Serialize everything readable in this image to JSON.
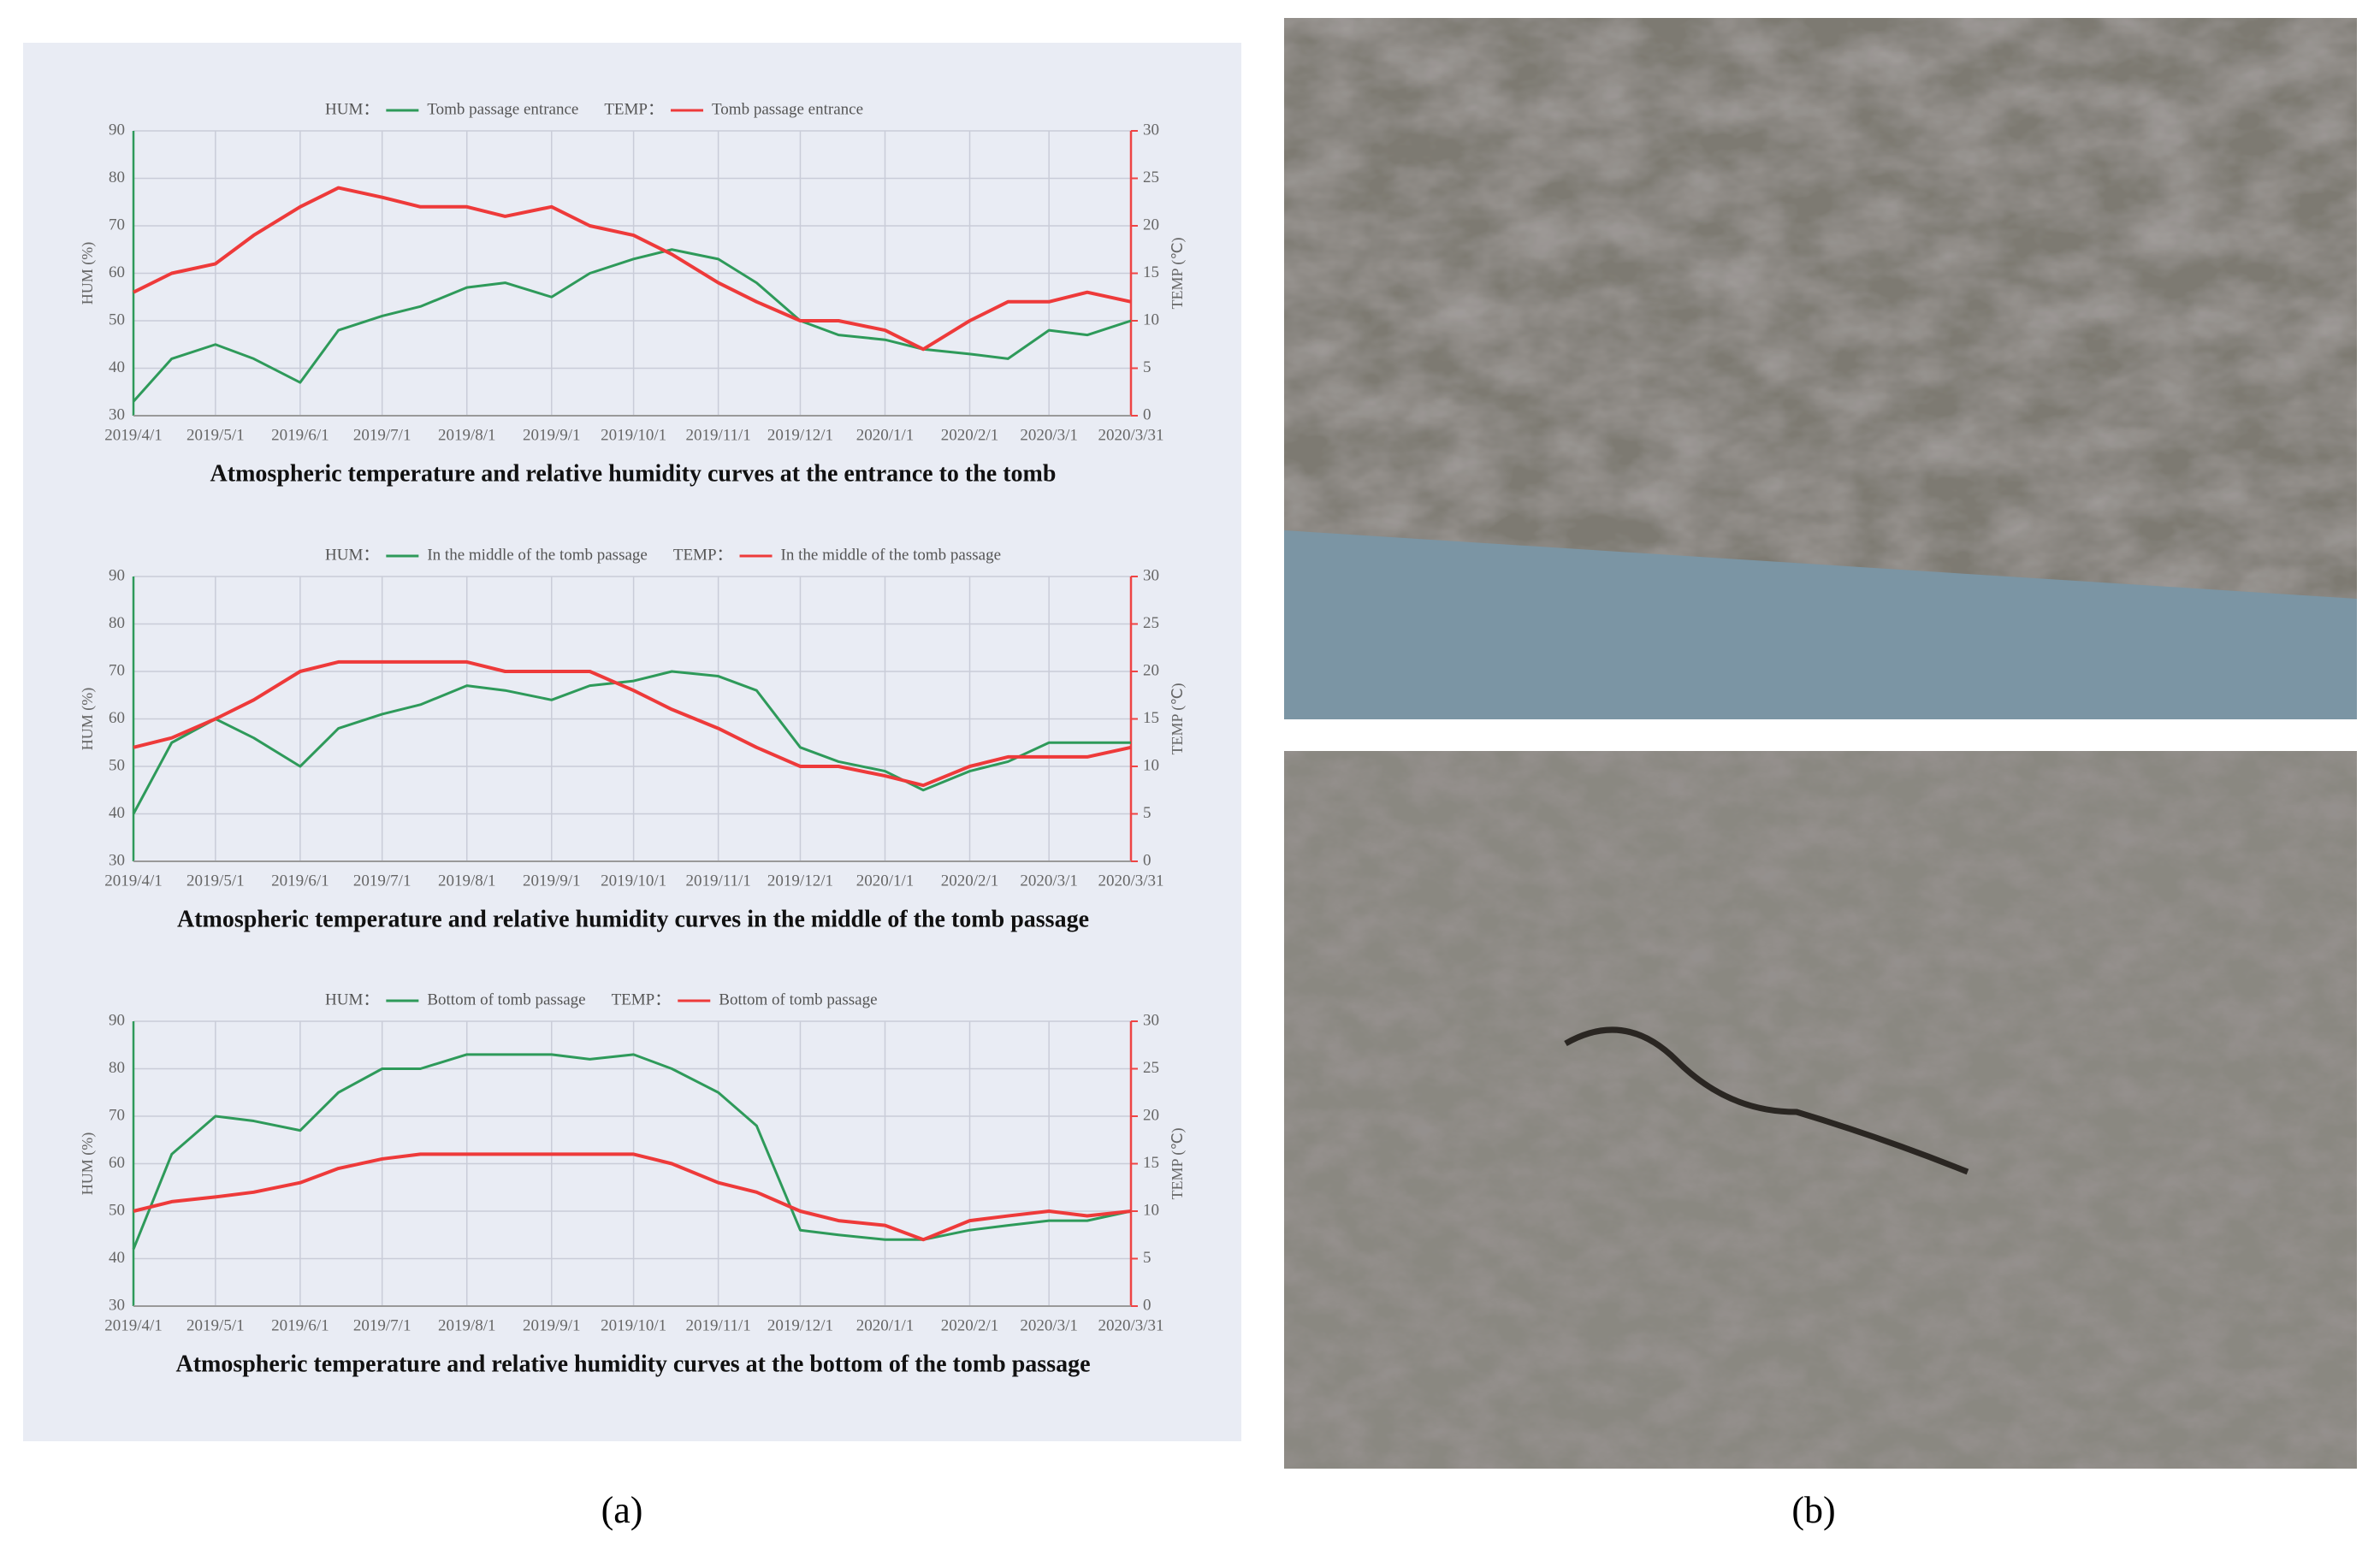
{
  "chart_data": [
    {
      "type": "line",
      "title": "Atmospheric temperature and relative humidity curves at the entrance to the tomb",
      "ylabel": "HUM (%)",
      "y2label": "TEMP (℃)",
      "x": [
        "2019/4/1",
        "2019/4/15",
        "2019/5/1",
        "2019/5/15",
        "2019/6/1",
        "2019/6/15",
        "2019/7/1",
        "2019/7/15",
        "2019/8/1",
        "2019/8/15",
        "2019/9/1",
        "2019/9/15",
        "2019/10/1",
        "2019/10/15",
        "2019/11/1",
        "2019/11/15",
        "2019/12/1",
        "2019/12/15",
        "2020/1/1",
        "2020/1/15",
        "2020/2/1",
        "2020/2/15",
        "2020/3/1",
        "2020/3/15",
        "2020/3/31"
      ],
      "series": [
        {
          "legend_label": "HUM：",
          "name": "Tomb passage entrance",
          "color": "#2e9a5a",
          "values": [
            33,
            42,
            45,
            42,
            37,
            48,
            51,
            53,
            57,
            58,
            55,
            60,
            63,
            65,
            63,
            58,
            50,
            47,
            46,
            44,
            43,
            42,
            48,
            47,
            50
          ]
        },
        {
          "legend_label": "TEMP：",
          "name": "Tomb passage entrance",
          "color": "#ee3a3a",
          "axis": "y2",
          "values": [
            13,
            15,
            16,
            19,
            22,
            24,
            23,
            22,
            22,
            21,
            22,
            20,
            19,
            17,
            14,
            12,
            10,
            10,
            9,
            7,
            10,
            12,
            12,
            13,
            12
          ]
        }
      ],
      "xlim": [
        "2019/4/1",
        "2020/3/31"
      ],
      "xticks": [
        "2019/4/1",
        "2019/5/1",
        "2019/6/1",
        "2019/7/1",
        "2019/8/1",
        "2019/9/1",
        "2019/10/1",
        "2019/11/1",
        "2019/12/1",
        "2020/1/1",
        "2020/2/1",
        "2020/3/1",
        "2020/3/31"
      ],
      "ylim": [
        30,
        90
      ],
      "yticks": [
        30,
        40,
        50,
        60,
        70,
        80,
        90
      ],
      "y2lim": [
        0,
        30
      ],
      "y2ticks": [
        0,
        5,
        10,
        15,
        20,
        25,
        30
      ],
      "grid": true
    },
    {
      "type": "line",
      "title": "Atmospheric temperature and relative humidity curves in the middle of the tomb passage",
      "ylabel": "HUM (%)",
      "y2label": "TEMP (℃)",
      "x": [
        "2019/4/1",
        "2019/4/15",
        "2019/5/1",
        "2019/5/15",
        "2019/6/1",
        "2019/6/15",
        "2019/7/1",
        "2019/7/15",
        "2019/8/1",
        "2019/8/15",
        "2019/9/1",
        "2019/9/15",
        "2019/10/1",
        "2019/10/15",
        "2019/11/1",
        "2019/11/15",
        "2019/12/1",
        "2019/12/15",
        "2020/1/1",
        "2020/1/15",
        "2020/2/1",
        "2020/2/15",
        "2020/3/1",
        "2020/3/15",
        "2020/3/31"
      ],
      "series": [
        {
          "legend_label": "HUM：",
          "name": "In the middle of the tomb passage",
          "color": "#2e9a5a",
          "values": [
            40,
            55,
            60,
            56,
            50,
            58,
            61,
            63,
            67,
            66,
            64,
            67,
            68,
            70,
            69,
            66,
            54,
            51,
            49,
            45,
            49,
            51,
            55,
            55,
            55
          ]
        },
        {
          "legend_label": "TEMP：",
          "name": "In the middle of the tomb passage",
          "color": "#ee3a3a",
          "axis": "y2",
          "values": [
            12,
            13,
            15,
            17,
            20,
            21,
            21,
            21,
            21,
            20,
            20,
            20,
            18,
            16,
            14,
            12,
            10,
            10,
            9,
            8,
            10,
            11,
            11,
            11,
            12
          ]
        }
      ],
      "xlim": [
        "2019/4/1",
        "2020/3/31"
      ],
      "xticks": [
        "2019/4/1",
        "2019/5/1",
        "2019/6/1",
        "2019/7/1",
        "2019/8/1",
        "2019/9/1",
        "2019/10/1",
        "2019/11/1",
        "2019/12/1",
        "2020/1/1",
        "2020/2/1",
        "2020/3/1",
        "2020/3/31"
      ],
      "ylim": [
        30,
        90
      ],
      "yticks": [
        30,
        40,
        50,
        60,
        70,
        80,
        90
      ],
      "y2lim": [
        0,
        30
      ],
      "y2ticks": [
        0,
        5,
        10,
        15,
        20,
        25,
        30
      ],
      "grid": true
    },
    {
      "type": "line",
      "title": "Atmospheric temperature and relative humidity curves at the bottom of the tomb passage",
      "ylabel": "HUM (%)",
      "y2label": "TEMP (℃)",
      "x": [
        "2019/4/1",
        "2019/4/15",
        "2019/5/1",
        "2019/5/15",
        "2019/6/1",
        "2019/6/15",
        "2019/7/1",
        "2019/7/15",
        "2019/8/1",
        "2019/8/15",
        "2019/9/1",
        "2019/9/15",
        "2019/10/1",
        "2019/10/15",
        "2019/11/1",
        "2019/11/15",
        "2019/12/1",
        "2019/12/15",
        "2020/1/1",
        "2020/1/15",
        "2020/2/1",
        "2020/2/15",
        "2020/3/1",
        "2020/3/15",
        "2020/3/31"
      ],
      "series": [
        {
          "legend_label": "HUM：",
          "name": "Bottom of tomb passage",
          "color": "#2e9a5a",
          "values": [
            42,
            62,
            70,
            69,
            67,
            75,
            80,
            80,
            83,
            83,
            83,
            82,
            83,
            80,
            75,
            68,
            46,
            45,
            44,
            44,
            46,
            47,
            48,
            48,
            50
          ]
        },
        {
          "legend_label": "TEMP：",
          "name": "Bottom of tomb passage",
          "color": "#ee3a3a",
          "axis": "y2",
          "values": [
            10,
            11,
            11.5,
            12,
            13,
            14.5,
            15.5,
            16,
            16,
            16,
            16,
            16,
            16,
            15,
            13,
            12,
            10,
            9,
            8.5,
            7,
            9,
            9.5,
            10,
            9.5,
            10
          ]
        }
      ],
      "xlim": [
        "2019/4/1",
        "2020/3/31"
      ],
      "xticks": [
        "2019/4/1",
        "2019/5/1",
        "2019/6/1",
        "2019/7/1",
        "2019/8/1",
        "2019/9/1",
        "2019/10/1",
        "2019/11/1",
        "2019/12/1",
        "2020/1/1",
        "2020/2/1",
        "2020/3/1",
        "2020/3/31"
      ],
      "ylim": [
        30,
        90
      ],
      "yticks": [
        30,
        40,
        50,
        60,
        70,
        80,
        90
      ],
      "y2lim": [
        0,
        30
      ],
      "y2ticks": [
        0,
        5,
        10,
        15,
        20,
        25,
        30
      ],
      "grid": true
    }
  ],
  "panel_labels": [
    "(a)",
    "(b)"
  ]
}
